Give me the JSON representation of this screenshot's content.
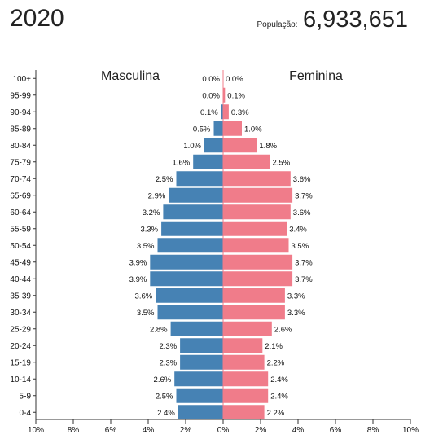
{
  "header": {
    "year": "2020",
    "population_label": "População:",
    "population_value": "6,933,651"
  },
  "chart_data": {
    "type": "bar",
    "orientation": "horizontal-population-pyramid",
    "title": "2020",
    "left_label": "Masculina",
    "right_label": "Feminina",
    "xlim": [
      -10,
      10
    ],
    "x_ticks": [
      "10%",
      "8%",
      "6%",
      "4%",
      "2%",
      "0%",
      "2%",
      "4%",
      "6%",
      "8%",
      "10%"
    ],
    "colors": {
      "male": "#4682b4",
      "female": "#f07c8a"
    },
    "categories": [
      "100+",
      "95-99",
      "90-94",
      "85-89",
      "80-84",
      "75-79",
      "70-74",
      "65-69",
      "60-64",
      "55-59",
      "50-54",
      "45-49",
      "40-44",
      "35-39",
      "30-34",
      "25-29",
      "20-24",
      "15-19",
      "10-14",
      "5-9",
      "0-4"
    ],
    "series": [
      {
        "name": "Masculina",
        "values": [
          0.0,
          0.0,
          0.1,
          0.5,
          1.0,
          1.6,
          2.5,
          2.9,
          3.2,
          3.3,
          3.5,
          3.9,
          3.9,
          3.6,
          3.5,
          2.8,
          2.3,
          2.3,
          2.6,
          2.5,
          2.4
        ],
        "labels": [
          "0.0%",
          "0.0%",
          "0.1%",
          "0.5%",
          "1.0%",
          "1.6%",
          "2.5%",
          "2.9%",
          "3.2%",
          "3.3%",
          "3.5%",
          "3.9%",
          "3.9%",
          "3.6%",
          "3.5%",
          "2.8%",
          "2.3%",
          "2.3%",
          "2.6%",
          "2.5%",
          "2.4%"
        ]
      },
      {
        "name": "Feminina",
        "values": [
          0.0,
          0.1,
          0.3,
          1.0,
          1.8,
          2.5,
          3.6,
          3.7,
          3.6,
          3.4,
          3.5,
          3.7,
          3.7,
          3.3,
          3.3,
          2.6,
          2.1,
          2.2,
          2.4,
          2.4,
          2.2
        ],
        "labels": [
          "0.0%",
          "0.1%",
          "0.3%",
          "1.0%",
          "1.8%",
          "2.5%",
          "3.6%",
          "3.7%",
          "3.6%",
          "3.4%",
          "3.5%",
          "3.7%",
          "3.7%",
          "3.3%",
          "3.3%",
          "2.6%",
          "2.1%",
          "2.2%",
          "2.4%",
          "2.4%",
          "2.2%"
        ]
      }
    ]
  }
}
